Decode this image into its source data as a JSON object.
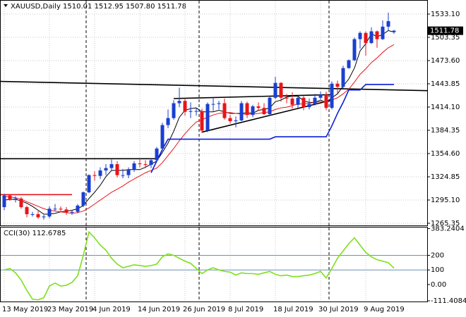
{
  "chart_data": [
    {
      "type": "candlestick",
      "title": "XAUUSD,Daily 1510.01 1512.95 1507.80 1511.78",
      "categories": [
        "13 May 2019",
        null,
        null,
        null,
        null,
        null,
        null,
        null,
        "23 May 2019",
        null,
        null,
        null,
        null,
        null,
        null,
        null,
        "4 Jun 2019",
        null,
        null,
        null,
        null,
        null,
        null,
        null,
        "14 Jun 2019",
        null,
        null,
        null,
        null,
        null,
        null,
        null,
        "26 Jun 2019",
        null,
        null,
        null,
        null,
        null,
        null,
        null,
        "8 Jul 2019",
        null,
        null,
        null,
        null,
        null,
        null,
        null,
        "18 Jul 2019",
        null,
        null,
        null,
        null,
        null,
        null,
        null,
        "30 Jul 2019",
        null,
        null,
        null,
        null,
        null,
        null,
        null,
        "9 Aug 2019",
        null,
        null,
        null,
        null,
        null
      ],
      "open": [
        1286,
        1301,
        1296,
        1297,
        1286,
        1277,
        1277,
        1273,
        1274,
        1284,
        1284,
        1283,
        1279,
        1280,
        1288,
        1305,
        1327,
        1326,
        1333,
        1336,
        1341,
        1327,
        1327,
        1334,
        1342,
        1341,
        1340,
        1346,
        1361,
        1391,
        1400,
        1419,
        1422,
        1408,
        1409,
        1409,
        1384,
        1418,
        1418,
        1419,
        1400,
        1396,
        1397,
        1419,
        1404,
        1415,
        1413,
        1405,
        1426,
        1445,
        1426,
        1425,
        1417,
        1426,
        1414,
        1418,
        1426,
        1430,
        1413,
        1444,
        1440,
        1464,
        1474,
        1501,
        1509,
        1496,
        1511,
        1501,
        1517,
        1510.01
      ],
      "high": [
        1303,
        1302,
        1300,
        1299,
        1288,
        1280,
        1281,
        1276,
        1287,
        1290,
        1287,
        1286,
        1282,
        1290,
        1306,
        1328,
        1332,
        1337,
        1341,
        1347,
        1345,
        1335,
        1337,
        1345,
        1348,
        1346,
        1348,
        1363,
        1394,
        1411,
        1423,
        1439,
        1425,
        1420,
        1413,
        1412,
        1420,
        1426,
        1422,
        1425,
        1404,
        1402,
        1422,
        1421,
        1417,
        1420,
        1419,
        1428,
        1453,
        1446,
        1431,
        1433,
        1428,
        1428,
        1425,
        1431,
        1434,
        1434,
        1447,
        1448,
        1467,
        1475,
        1503,
        1511,
        1511,
        1516,
        1512,
        1525,
        1535,
        1512.95
      ],
      "low": [
        1282,
        1294,
        1292,
        1284,
        1273,
        1274,
        1271,
        1270,
        1272,
        1281,
        1280,
        1276,
        1276,
        1278,
        1286,
        1304,
        1320,
        1322,
        1327,
        1332,
        1324,
        1323,
        1323,
        1331,
        1337,
        1336,
        1336,
        1344,
        1358,
        1387,
        1398,
        1414,
        1403,
        1400,
        1403,
        1381,
        1382,
        1409,
        1411,
        1398,
        1393,
        1388,
        1396,
        1400,
        1401,
        1409,
        1404,
        1403,
        1424,
        1421,
        1419,
        1412,
        1413,
        1410,
        1411,
        1416,
        1424,
        1410,
        1411,
        1432,
        1438,
        1463,
        1473,
        1489,
        1480,
        1495,
        1490,
        1500,
        1512,
        1507.8
      ],
      "close": [
        1301,
        1296,
        1297,
        1286,
        1277,
        1277,
        1273,
        1274,
        1284,
        1284,
        1283,
        1279,
        1280,
        1288,
        1305,
        1327,
        1326,
        1333,
        1336,
        1341,
        1327,
        1327,
        1334,
        1342,
        1341,
        1340,
        1346,
        1361,
        1391,
        1400,
        1419,
        1422,
        1408,
        1409,
        1409,
        1384,
        1418,
        1418,
        1419,
        1400,
        1396,
        1397,
        1419,
        1404,
        1415,
        1413,
        1405,
        1426,
        1445,
        1426,
        1425,
        1417,
        1426,
        1414,
        1418,
        1426,
        1430,
        1413,
        1444,
        1440,
        1464,
        1474,
        1501,
        1509,
        1496,
        1511,
        1501,
        1517,
        1524,
        1511.78
      ],
      "up_color": "#1a3fd0",
      "down_color": "#e8141b",
      "series": [
        {
          "color": "#000000",
          "values": [
            1295,
            1296,
            1296,
            1294,
            1291,
            1287,
            1282,
            1277,
            1277,
            1278,
            1280,
            1281,
            1282,
            1284,
            1288,
            1297,
            1305,
            1314,
            1325,
            1333,
            1333,
            1333,
            1334,
            1334,
            1334,
            1337,
            1341,
            1345,
            1356,
            1368,
            1383,
            1401,
            1410,
            1412,
            1413,
            1408,
            1408,
            1408,
            1410,
            1408,
            1406,
            1406,
            1406,
            1407,
            1406,
            1410,
            1411,
            1413,
            1421,
            1423,
            1427,
            1428,
            1428,
            1422,
            1420,
            1420,
            1423,
            1420,
            1426,
            1431,
            1441,
            1450,
            1464,
            1486,
            1495,
            1508,
            1504,
            1507,
            1512,
            1510
          ]
        },
        {
          "color": "#e8141b",
          "values": [
            1300,
            1299,
            1298,
            1296,
            1293,
            1290,
            1287,
            1284,
            1282,
            1281,
            1280,
            1279,
            1278,
            1279,
            1281,
            1285,
            1290,
            1295,
            1300,
            1305,
            1309,
            1313,
            1318,
            1322,
            1326,
            1330,
            1333,
            1336,
            1343,
            1352,
            1361,
            1371,
            1380,
            1388,
            1395,
            1398,
            1401,
            1404,
            1406,
            1407,
            1407,
            1406,
            1405,
            1405,
            1405,
            1406,
            1407,
            1408,
            1411,
            1413,
            1414,
            1416,
            1418,
            1418,
            1419,
            1420,
            1421,
            1420,
            1423,
            1426,
            1431,
            1437,
            1446,
            1456,
            1463,
            1471,
            1477,
            1484,
            1490,
            1494
          ]
        },
        {
          "color": "#0a1fd8",
          "values": [
            null,
            null,
            null,
            null,
            null,
            null,
            null,
            null,
            null,
            null,
            null,
            null,
            null,
            null,
            null,
            null,
            null,
            null,
            null,
            null,
            null,
            null,
            null,
            null,
            null,
            null,
            1330,
            1345,
            1360,
            1373,
            1373,
            1373,
            1373,
            1373,
            1373,
            1373,
            1373,
            1373,
            1373,
            1373,
            1373,
            1373,
            1373,
            1373,
            1373,
            1373,
            1373,
            1373,
            1376,
            1376,
            1376,
            1376,
            1376,
            1376,
            1376,
            1376,
            1376,
            1376,
            1390,
            1406,
            1420,
            1436,
            1436,
            1436,
            1443,
            1443,
            1443,
            1443,
            1443,
            1443
          ]
        }
      ],
      "lines": [
        {
          "color": "#000000",
          "from": [
            -1,
            1447
          ],
          "to": [
            82,
            1434
          ]
        },
        {
          "color": "#000000",
          "from": [
            -1,
            1348
          ],
          "to": [
            27,
            1348
          ]
        },
        {
          "color": "#e8141b",
          "from": [
            -1,
            1302
          ],
          "to": [
            12,
            1302
          ]
        },
        {
          "color": "#000000",
          "from": [
            30,
            1425
          ],
          "to": [
            58,
            1430
          ]
        },
        {
          "color": "#000000",
          "from": [
            35,
            1382
          ],
          "to": [
            58,
            1423
          ]
        }
      ],
      "ylim": [
        1262.6,
        1548.4
      ],
      "yticks": [
        {
          "value": 1533.1,
          "label": "1533.10"
        },
        1503.35,
        {
          "value": 1473.6,
          "label": "1473.60"
        },
        1443.85,
        {
          "value": 1414.1,
          "label": "1414.10"
        },
        1384.35,
        {
          "value": 1354.6,
          "label": "1354.60"
        },
        1324.85,
        {
          "value": 1295.1,
          "label": "1295.10"
        },
        1265.35
      ],
      "grid": true
    },
    {
      "type": "line",
      "title": "CCI(30) 112.6785",
      "color": "#7ce01c",
      "values": [
        100,
        110,
        80,
        30,
        -40,
        -100,
        -105,
        -90,
        -10,
        10,
        -10,
        -5,
        15,
        60,
        200,
        360,
        320,
        270,
        235,
        180,
        140,
        115,
        125,
        135,
        130,
        125,
        130,
        140,
        190,
        210,
        200,
        180,
        160,
        145,
        110,
        75,
        100,
        115,
        100,
        90,
        85,
        65,
        80,
        75,
        75,
        70,
        80,
        90,
        70,
        60,
        65,
        55,
        55,
        60,
        65,
        75,
        90,
        45,
        110,
        180,
        230,
        280,
        320,
        270,
        220,
        190,
        170,
        160,
        150,
        112.6785
      ],
      "levels": [
        200,
        100
      ],
      "level_color": "#6f8fb0",
      "ylim": [
        -116.2,
        390.4
      ],
      "yticks": [
        383.2404,
        200,
        100,
        {
          "value": 0,
          "label": "0.00"
        },
        -111.4084
      ]
    }
  ]
}
